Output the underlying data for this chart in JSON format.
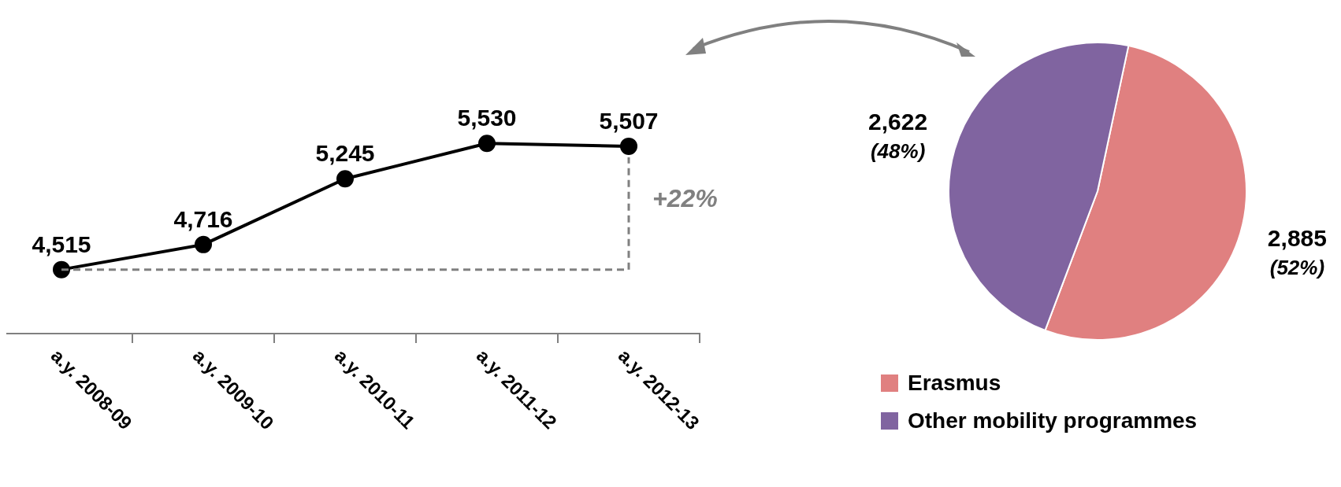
{
  "chart_data": [
    {
      "type": "line",
      "categories": [
        "a.y. 2008-09",
        "a.y. 2009-10",
        "a.y. 2010-11",
        "a.y. 2011-12",
        "a.y. 2012-13"
      ],
      "series": [
        {
          "color": "#000000",
          "values": [
            4515,
            4716,
            5245,
            5530,
            5507
          ],
          "value_labels": [
            "4,515",
            "4,716",
            "5,245",
            "5,530",
            "5,507"
          ]
        }
      ],
      "marker": "circle",
      "line_style": "solid",
      "tick_labels": "x",
      "grid": false,
      "legend": false,
      "ref_lines": [
        {
          "axis": "y",
          "value": 4515,
          "color": "#808080",
          "line_style": "dashed"
        },
        {
          "axis": "x",
          "value": "a.y. 2012-13",
          "color": "#808080",
          "line_style": "dashed"
        }
      ],
      "annotations": [
        "+22%"
      ]
    },
    {
      "type": "pie",
      "categories": [
        "Erasmus",
        "Other mobility programmes"
      ],
      "values": [
        2885,
        2622
      ],
      "colors": [
        "#e08080",
        "#8064a0"
      ],
      "value_labels": [
        "2,885 (52%)",
        "2,622 (48%)"
      ],
      "legend": "bottom"
    }
  ]
}
